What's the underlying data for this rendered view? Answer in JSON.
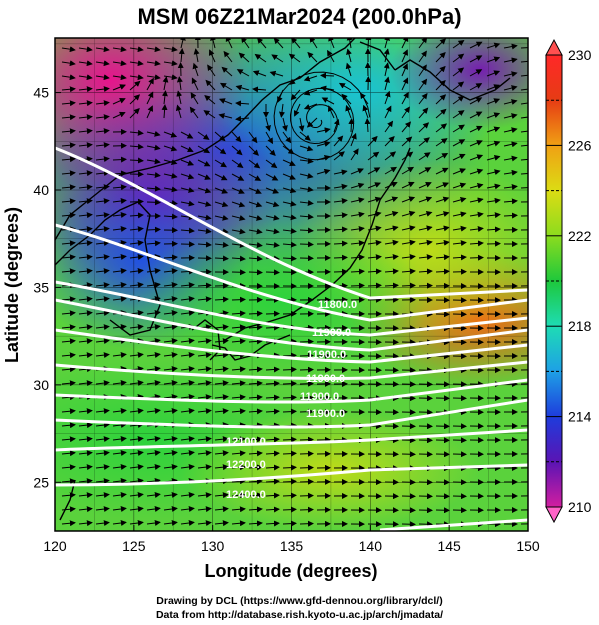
{
  "title": "MSM 06Z21Mar2024 (200.0hPa)",
  "map": {
    "x_axis": {
      "label": "Longitude (degrees)",
      "range": [
        120,
        150
      ],
      "ticks": [
        120,
        125,
        130,
        135,
        140,
        145,
        150
      ],
      "tick_labels": [
        "120",
        "125",
        "130",
        "135",
        "140",
        "145",
        "150"
      ]
    },
    "y_axis": {
      "label": "Latitude  (degrees)",
      "range": [
        22.5,
        47.8
      ],
      "ticks": [
        25,
        30,
        35,
        40,
        45
      ],
      "tick_labels": [
        "25",
        "30",
        "35",
        "40",
        "45"
      ]
    },
    "colorbar": {
      "range": [
        210,
        230
      ],
      "tick_labels": [
        "230",
        "226",
        "222",
        "218",
        "214",
        "210"
      ],
      "tick_values": [
        230,
        226,
        222,
        218,
        214,
        210
      ],
      "colors": [
        "#d21ea0",
        "#5a14b4",
        "#1e3cdc",
        "#1ea0e6",
        "#1edcb4",
        "#1ec83c",
        "#8cdc1e",
        "#dcdc14",
        "#f0a014",
        "#e63c14",
        "#ff2828"
      ]
    },
    "contours": {
      "color": "#ffffff",
      "labels": [
        "11800.0",
        "11900.0",
        "11900.0",
        "11900.0",
        "11900.0",
        "11900.0",
        "12100.0",
        "12200.0",
        "12400.0"
      ]
    }
  },
  "credits": {
    "line1": "Drawing by DCL (https://www.gfd-dennou.org/library/dcl/)",
    "line2": "Data from http://database.rish.kyoto-u.ac.jp/arch/jmadata/"
  }
}
